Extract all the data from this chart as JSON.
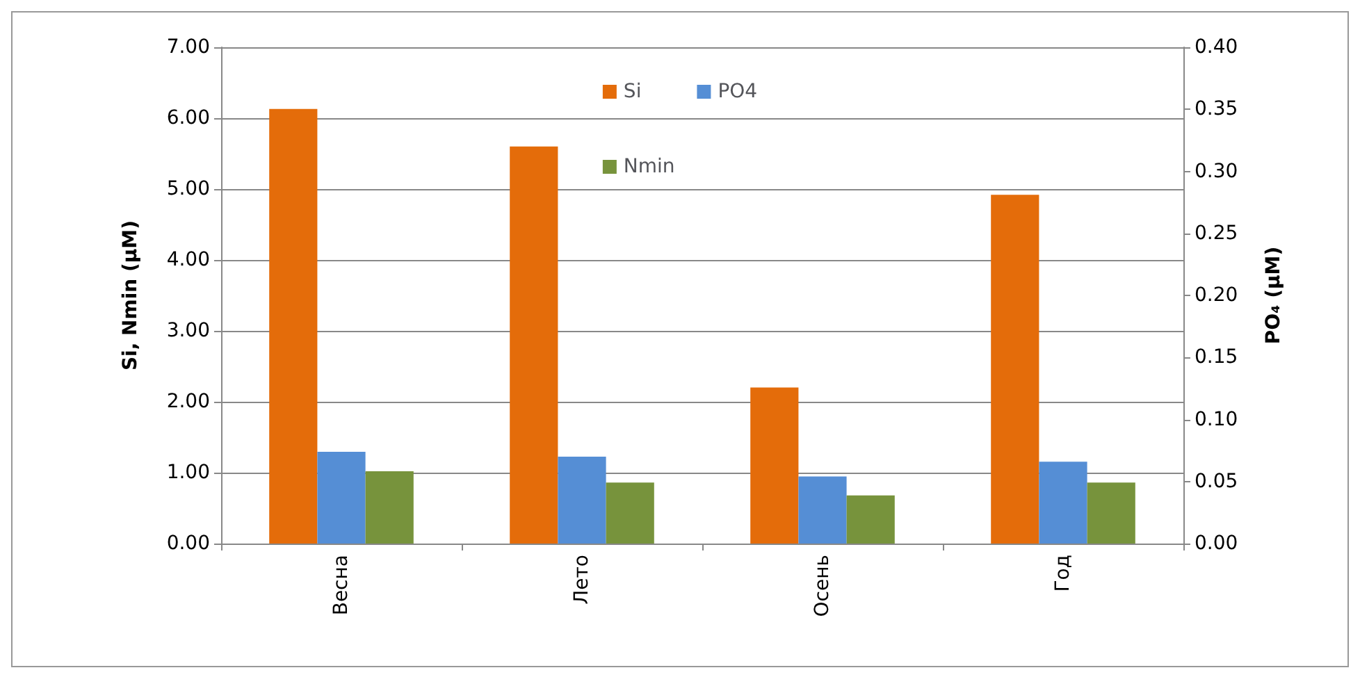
{
  "chart_data": {
    "type": "bar",
    "categories": [
      "Весна",
      "Лето",
      "Осень",
      "Год"
    ],
    "series": [
      {
        "name": "Si",
        "color": "#e46c0a",
        "values": [
          6.13,
          5.6,
          2.2,
          4.92
        ]
      },
      {
        "name": "PO4",
        "color": "#558ed5",
        "values": [
          0.074,
          0.07,
          0.054,
          0.066
        ],
        "axis": "y2"
      },
      {
        "name": "Nmin",
        "color": "#77933c",
        "values": [
          1.02,
          0.86,
          0.68,
          0.86
        ]
      }
    ],
    "ylabel": "Si, Nmin (µM)",
    "y2label": "PO₄ (µM)",
    "ylim": [
      0,
      7
    ],
    "yticks": [
      {
        "value": 0,
        "label": "0.00"
      },
      {
        "value": 1,
        "label": "1.00"
      },
      {
        "value": 2,
        "label": "2.00"
      },
      {
        "value": 3,
        "label": "3.00"
      },
      {
        "value": 4,
        "label": "4.00"
      },
      {
        "value": 5,
        "label": "5.00"
      },
      {
        "value": 6,
        "label": "6.00"
      },
      {
        "value": 7,
        "label": "7.00"
      }
    ],
    "y2lim": [
      0,
      0.4
    ],
    "y2ticks": [
      {
        "value": 0,
        "label": "0.00"
      },
      {
        "value": 0.05,
        "label": "0.05"
      },
      {
        "value": 0.1,
        "label": "0.10"
      },
      {
        "value": 0.15,
        "label": "0.15"
      },
      {
        "value": 0.2,
        "label": "0.20"
      },
      {
        "value": 0.25,
        "label": "0.25"
      },
      {
        "value": 0.3,
        "label": "0.30"
      },
      {
        "value": 0.35,
        "label": "0.35"
      },
      {
        "value": 0.4,
        "label": "0.40"
      }
    ],
    "grid": "y",
    "legend": "top"
  }
}
